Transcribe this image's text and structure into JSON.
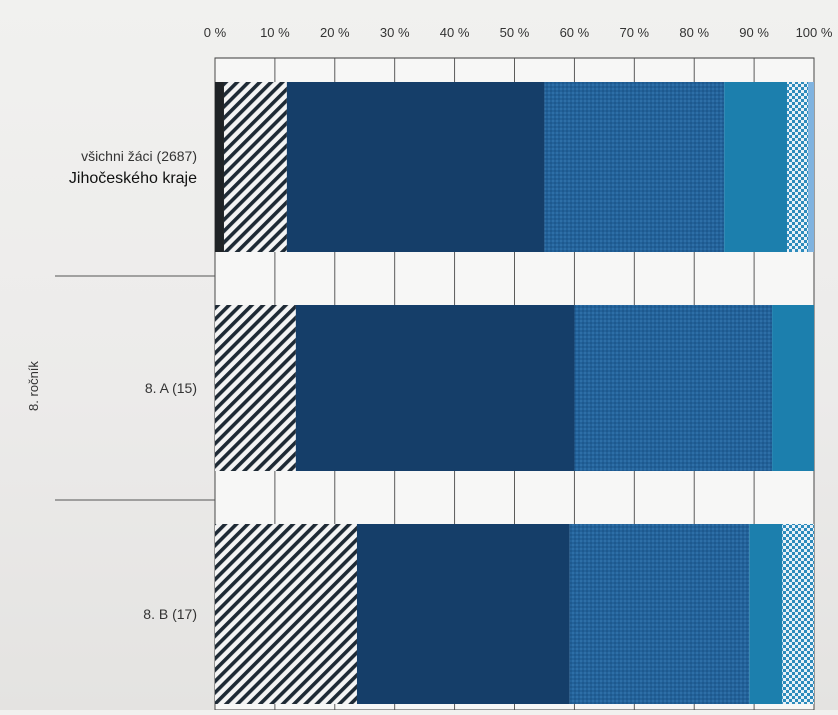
{
  "chart_data": {
    "type": "bar",
    "orientation": "horizontal",
    "stacked": true,
    "title": "",
    "xlabel": "",
    "ylabel": "",
    "xlim": [
      0,
      100
    ],
    "x_ticks": [
      "0 %",
      "10 %",
      "20 %",
      "30 %",
      "40 %",
      "50 %",
      "60 %",
      "70 %",
      "80 %",
      "90 %",
      "100 %"
    ],
    "grid": "vertical",
    "legend": "none",
    "group_label": "8. ročník",
    "categories": [
      {
        "lines": [
          "všichni žáci (2687)",
          "Jihočeského kraje"
        ]
      },
      {
        "lines": [
          "8. A (15)"
        ]
      },
      {
        "lines": [
          "8. B (17)"
        ]
      }
    ],
    "series": [
      {
        "color": "#1f2326",
        "pattern": "solid",
        "values": [
          1.5,
          0,
          0
        ]
      },
      {
        "color": "#1e2a35",
        "pattern": "diagonal-stripes",
        "values": [
          10.5,
          13.5,
          23.7
        ]
      },
      {
        "color": "#153e69",
        "pattern": "solid",
        "values": [
          43,
          46.5,
          35.5
        ]
      },
      {
        "color": "#23629a",
        "pattern": "dots",
        "values": [
          30,
          33,
          30
        ]
      },
      {
        "color": "#1c7fad",
        "pattern": "solid",
        "values": [
          10.5,
          7,
          5.5
        ]
      },
      {
        "color": "#2d8bbc",
        "pattern": "checker",
        "values": [
          3.5,
          0,
          5.3
        ]
      },
      {
        "color": "#7fb3e0",
        "pattern": "solid",
        "values": [
          1,
          0,
          0
        ]
      }
    ]
  }
}
